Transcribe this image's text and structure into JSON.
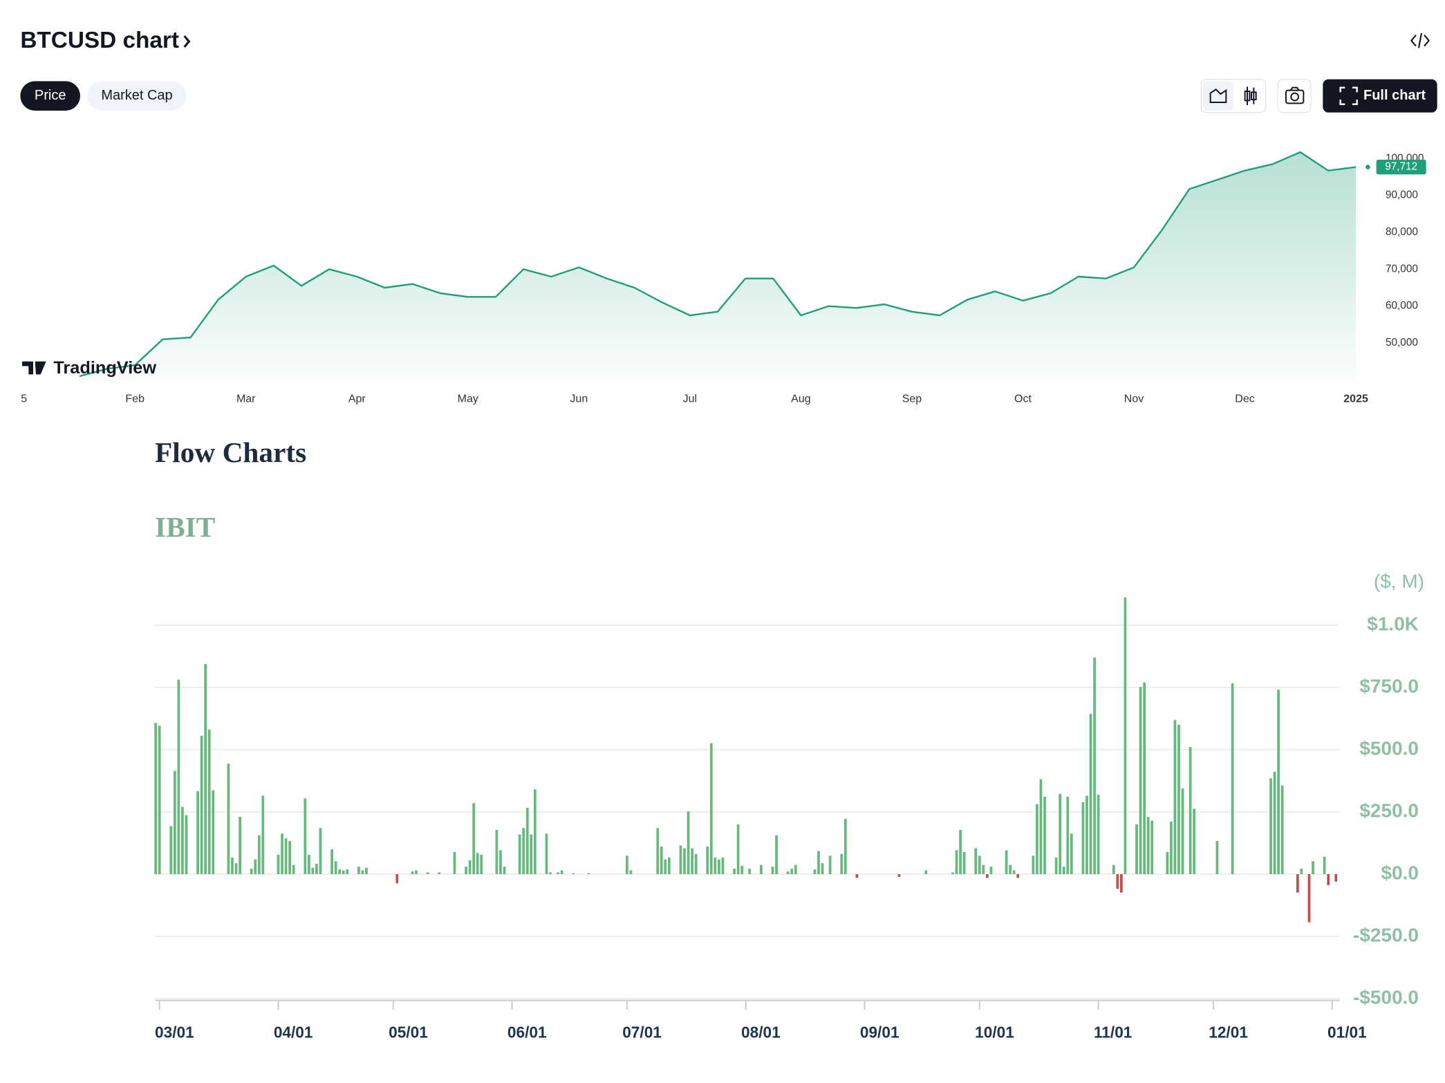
{
  "header": {
    "title": "BTCUSD chart",
    "tabs": [
      "Price",
      "Market Cap"
    ],
    "full_chart": "Full chart"
  },
  "watermark": "TradingView",
  "section_title": "Flow Charts",
  "fund": "IBIT",
  "chart_data": [
    {
      "type": "area",
      "color": "#1f9e7a",
      "categories": [
        "5",
        null,
        null,
        null,
        "Feb",
        null,
        null,
        null,
        "Mar",
        null,
        null,
        null,
        "Apr",
        null,
        null,
        null,
        "May",
        null,
        null,
        null,
        "Jun",
        null,
        null,
        null,
        "Jul",
        null,
        null,
        null,
        "Aug",
        null,
        null,
        null,
        "Sep",
        null,
        null,
        null,
        "Oct",
        null,
        null,
        null,
        "Nov",
        null,
        null,
        null,
        "Dec",
        null,
        null,
        null,
        "2025"
      ],
      "values": [
        null,
        null,
        41000,
        43000,
        44000,
        51000,
        51500,
        61750,
        68000,
        71000,
        65500,
        70000,
        68000,
        65000,
        66000,
        63500,
        62500,
        62500,
        70000,
        68000,
        70500,
        67500,
        65000,
        61000,
        57500,
        58500,
        67500,
        67500,
        57500,
        60000,
        59500,
        60500,
        58500,
        57500,
        61750,
        64000,
        61500,
        63500,
        68000,
        67500,
        70500,
        80500,
        91750,
        94250,
        96750,
        98500,
        101750,
        96750,
        97712
      ],
      "value_labels": [
        null,
        null,
        null,
        null,
        null,
        null,
        null,
        null,
        null,
        null,
        null,
        null,
        null,
        null,
        null,
        null,
        null,
        null,
        null,
        null,
        null,
        null,
        null,
        null,
        null,
        null,
        null,
        null,
        null,
        null,
        null,
        null,
        null,
        null,
        null,
        null,
        null,
        null,
        null,
        null,
        null,
        null,
        null,
        null,
        null,
        null,
        null,
        null,
        "97,712"
      ],
      "ylim": [
        40000,
        107000
      ],
      "yticks": [
        {
          "value": 50000,
          "label": "50,000"
        },
        {
          "value": 60000,
          "label": "60,000"
        },
        {
          "value": 70000,
          "label": "70,000"
        },
        {
          "value": 80000,
          "label": "80,000"
        },
        {
          "value": 90000,
          "label": "90,000"
        },
        {
          "value": 100000,
          "label": "100,000"
        }
      ],
      "grid": false
    },
    {
      "type": "bar",
      "color": "#66b97c",
      "negative_color": "#c0504d",
      "y_label": "($, M)",
      "categories": [
        null,
        "03/01",
        null,
        null,
        null,
        null,
        null,
        null,
        null,
        null,
        null,
        null,
        null,
        null,
        null,
        null,
        null,
        null,
        null,
        null,
        null,
        null,
        null,
        null,
        null,
        null,
        null,
        null,
        null,
        null,
        null,
        null,
        "04/01",
        null,
        null,
        null,
        null,
        null,
        null,
        null,
        null,
        null,
        null,
        null,
        null,
        null,
        null,
        null,
        null,
        null,
        null,
        null,
        null,
        null,
        null,
        null,
        null,
        null,
        null,
        null,
        null,
        null,
        "05/01",
        null,
        null,
        null,
        null,
        null,
        null,
        null,
        null,
        null,
        null,
        null,
        null,
        null,
        null,
        null,
        null,
        null,
        null,
        null,
        null,
        null,
        null,
        null,
        null,
        null,
        null,
        null,
        null,
        null,
        null,
        "06/01",
        null,
        null,
        null,
        null,
        null,
        null,
        null,
        null,
        null,
        null,
        null,
        null,
        null,
        null,
        null,
        null,
        null,
        null,
        null,
        null,
        null,
        null,
        null,
        null,
        null,
        null,
        null,
        null,
        null,
        "07/01",
        null,
        null,
        null,
        null,
        null,
        null,
        null,
        null,
        null,
        null,
        null,
        null,
        null,
        null,
        null,
        null,
        null,
        null,
        null,
        null,
        null,
        null,
        null,
        null,
        null,
        null,
        null,
        null,
        null,
        null,
        "08/01",
        null,
        null,
        null,
        null,
        null,
        null,
        null,
        null,
        null,
        null,
        null,
        null,
        null,
        null,
        null,
        null,
        null,
        null,
        null,
        null,
        null,
        null,
        null,
        null,
        null,
        null,
        null,
        null,
        null,
        null,
        "09/01",
        null,
        null,
        null,
        null,
        null,
        null,
        null,
        null,
        null,
        null,
        null,
        null,
        null,
        null,
        null,
        null,
        null,
        null,
        null,
        null,
        null,
        null,
        null,
        null,
        null,
        null,
        null,
        null,
        null,
        "10/01",
        null,
        null,
        null,
        null,
        null,
        null,
        null,
        null,
        null,
        null,
        null,
        null,
        null,
        null,
        null,
        null,
        null,
        null,
        null,
        null,
        null,
        null,
        null,
        null,
        null,
        null,
        null,
        null,
        null,
        null,
        "11/01",
        null,
        null,
        null,
        null,
        null,
        null,
        null,
        null,
        null,
        null,
        null,
        null,
        null,
        null,
        null,
        null,
        null,
        null,
        null,
        null,
        null,
        null,
        null,
        null,
        null,
        null,
        null,
        null,
        null,
        "12/01",
        null,
        null,
        null,
        null,
        null,
        null,
        null,
        null,
        null,
        null,
        null,
        null,
        null,
        null,
        null,
        null,
        null,
        null,
        null,
        null,
        null,
        null,
        null,
        null,
        null,
        null,
        null,
        null,
        null,
        null,
        "01/01",
        null
      ],
      "values": [
        607,
        596,
        null,
        null,
        193,
        415,
        781,
        270,
        237,
        null,
        null,
        333,
        556,
        844,
        581,
        337,
        null,
        null,
        null,
        444,
        67,
        44,
        230,
        null,
        null,
        22,
        59,
        156,
        315,
        null,
        null,
        null,
        78,
        163,
        144,
        133,
        37,
        null,
        null,
        304,
        78,
        26,
        41,
        185,
        null,
        null,
        100,
        52,
        19,
        15,
        19,
        null,
        null,
        30,
        15,
        26,
        null,
        null,
        null,
        null,
        null,
        null,
        null,
        -37,
        null,
        null,
        null,
        11,
        15,
        null,
        null,
        7,
        null,
        null,
        7,
        null,
        null,
        null,
        89,
        null,
        null,
        30,
        56,
        285,
        85,
        78,
        null,
        null,
        null,
        178,
        96,
        30,
        null,
        null,
        null,
        159,
        185,
        267,
        159,
        341,
        null,
        null,
        163,
        7,
        null,
        7,
        15,
        null,
        null,
        4,
        null,
        null,
        null,
        4,
        null,
        null,
        null,
        null,
        null,
        null,
        null,
        null,
        null,
        74,
        15,
        null,
        null,
        null,
        null,
        null,
        null,
        185,
        111,
        59,
        67,
        null,
        null,
        115,
        104,
        252,
        104,
        81,
        null,
        null,
        111,
        526,
        67,
        59,
        67,
        null,
        null,
        22,
        200,
        33,
        null,
        22,
        null,
        null,
        37,
        null,
        null,
        30,
        156,
        null,
        null,
        11,
        22,
        37,
        null,
        null,
        null,
        null,
        19,
        93,
        44,
        null,
        74,
        null,
        null,
        81,
        222,
        null,
        null,
        -15,
        null,
        null,
        null,
        null,
        null,
        null,
        null,
        null,
        null,
        null,
        -11,
        null,
        null,
        null,
        null,
        null,
        null,
        15,
        null,
        null,
        null,
        null,
        null,
        null,
        7,
        96,
        178,
        89,
        null,
        null,
        104,
        74,
        37,
        -15,
        30,
        null,
        null,
        null,
        96,
        37,
        15,
        -15,
        null,
        null,
        null,
        74,
        281,
        381,
        311,
        null,
        null,
        67,
        322,
        30,
        311,
        163,
        null,
        null,
        289,
        315,
        644,
        870,
        319,
        null,
        null,
        null,
        37,
        -59,
        -74,
        1111,
        null,
        null,
        200,
        752,
        770,
        230,
        215,
        null,
        null,
        null,
        89,
        211,
        619,
        600,
        344,
        null,
        511,
        263,
        null,
        null,
        null,
        null,
        null,
        133,
        null,
        null,
        null,
        767,
        null,
        null,
        null,
        null,
        null,
        null,
        null,
        null,
        null,
        385,
        411,
        741,
        356,
        null,
        null,
        null,
        -74,
        22,
        null,
        -193,
        52,
        null,
        null,
        70,
        -44,
        null,
        -30
      ],
      "ylim": [
        -500,
        1120
      ],
      "yticks": [
        {
          "value": -500,
          "label": "-$500.0"
        },
        {
          "value": -250,
          "label": "-$250.0"
        },
        {
          "value": 0,
          "label": "$0.0"
        },
        {
          "value": 250,
          "label": "$250.0"
        },
        {
          "value": 500,
          "label": "$500.0"
        },
        {
          "value": 750,
          "label": "$750.0"
        },
        {
          "value": 1000,
          "label": "$1.0K"
        }
      ],
      "grid": true
    }
  ]
}
